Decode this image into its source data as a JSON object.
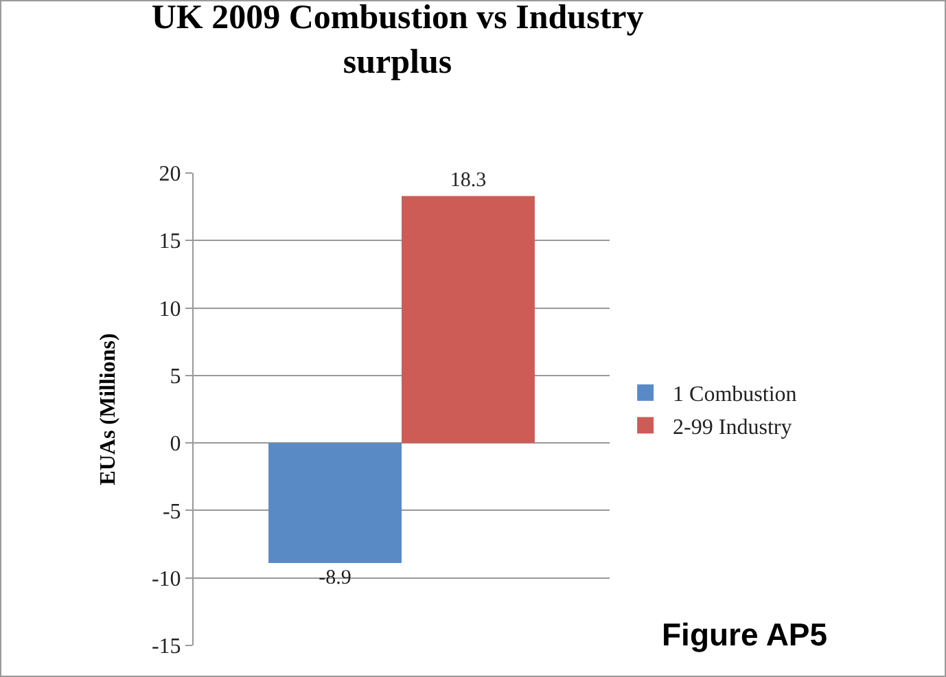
{
  "chart_data": {
    "type": "bar",
    "title": "UK 2009 Combustion vs Industry surplus",
    "ylabel": "EUAs (Millions)",
    "categories": [
      null
    ],
    "series": [
      {
        "name": "1 Combustion",
        "color": "#5a8ac6",
        "values": [
          -8.9
        ]
      },
      {
        "name": "2-99 Industry",
        "color": "#cd5c57",
        "values": [
          18.3
        ]
      }
    ],
    "ylim": [
      -15,
      20
    ],
    "yticks": [
      -15,
      -10,
      -5,
      0,
      5,
      10,
      15,
      20
    ],
    "grid": "y",
    "legend": "right",
    "data_labels": true,
    "annotations": [
      "Figure AP5"
    ]
  }
}
